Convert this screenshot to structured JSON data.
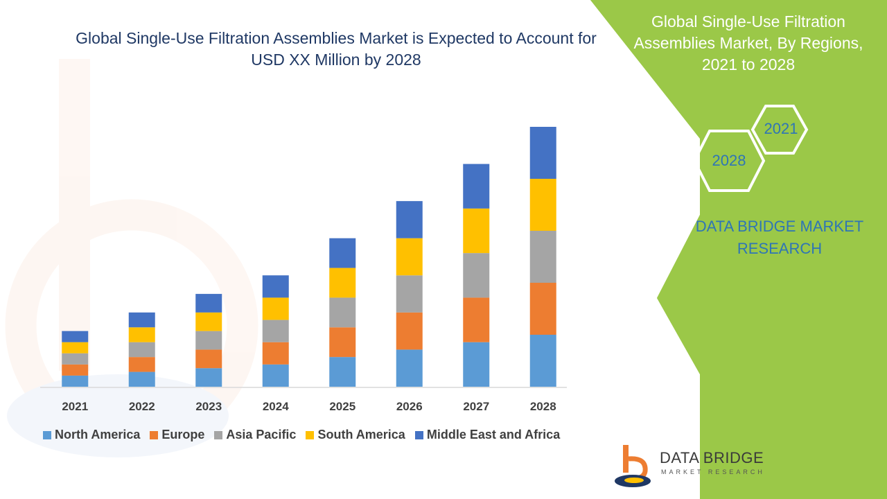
{
  "chart_data": {
    "type": "bar",
    "stacked": true,
    "title": "Global Single-Use Filtration Assemblies Market is Expected to Account for USD XX Million by 2028",
    "categories": [
      "2021",
      "2022",
      "2023",
      "2024",
      "2025",
      "2026",
      "2027",
      "2028"
    ],
    "series": [
      {
        "name": "North America",
        "color": "#5b9bd5",
        "values": [
          15,
          20,
          25,
          30,
          40,
          50,
          60,
          70
        ]
      },
      {
        "name": "Europe",
        "color": "#ed7d31",
        "values": [
          15,
          20,
          25,
          30,
          40,
          50,
          60,
          70
        ]
      },
      {
        "name": "Asia Pacific",
        "color": "#a5a5a5",
        "values": [
          15,
          20,
          25,
          30,
          40,
          50,
          60,
          70
        ]
      },
      {
        "name": "South America",
        "color": "#ffc000",
        "values": [
          15,
          20,
          25,
          30,
          40,
          50,
          60,
          70
        ]
      },
      {
        "name": "Middle East and Africa",
        "color": "#4472c4",
        "values": [
          15,
          20,
          25,
          30,
          40,
          50,
          60,
          70
        ]
      }
    ],
    "xlabel": "",
    "ylabel": "",
    "ylim": [
      0,
      350
    ],
    "grid": false,
    "legend": "bottom"
  },
  "side_panel": {
    "title": "Global Single-Use Filtration Assemblies Market, By Regions, 2021 to 2028",
    "hex_start": "2021",
    "hex_end": "2028",
    "brand": "DATA BRIDGE MARKET RESEARCH",
    "accent": "#9bc848"
  },
  "logo": {
    "name": "DATA BRIDGE",
    "tagline": "MARKET RESEARCH"
  }
}
